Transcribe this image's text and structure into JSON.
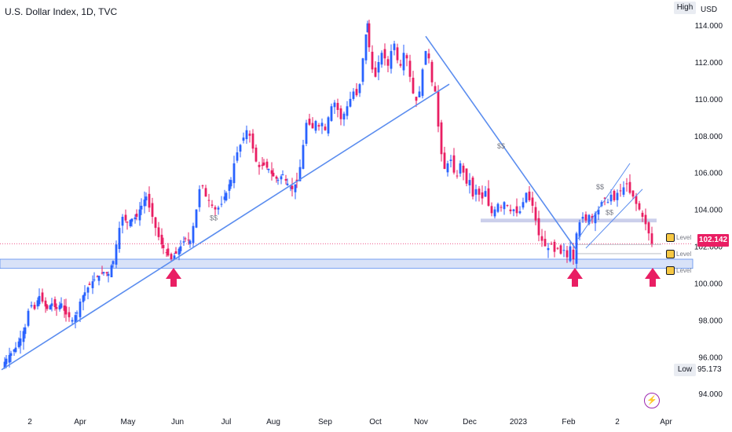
{
  "header": {
    "title": "U.S. Dollar Index, 1D, TVC",
    "high_label": "High",
    "currency": "USD",
    "low_label": "Low",
    "low_value": "95.173",
    "last_price": "102.142",
    "level_labels": [
      "Level",
      "Level",
      "Level"
    ],
    "bolt_icon": "lightning-icon"
  },
  "colors": {
    "up": "#2962ff",
    "down": "#e91e63",
    "trendline": "#5b8def",
    "support_zone": "#c8d6f5",
    "resistance_zone": "#c5cae9",
    "last_price_line": "#e91e63",
    "arrow": "#e91e63"
  },
  "chart_data": {
    "type": "candlestick",
    "title": "U.S. Dollar Index, 1D, TVC",
    "ylim": [
      93.2,
      114.6
    ],
    "y_ticks": [
      94.0,
      96.0,
      98.0,
      100.0,
      102.0,
      104.0,
      106.0,
      108.0,
      110.0,
      112.0,
      114.0
    ],
    "x_tick_labels": [
      "2",
      "Apr",
      "May",
      "Jun",
      "Jul",
      "Aug",
      "Sep",
      "Oct",
      "Nov",
      "Dec",
      "2023",
      "Feb",
      "2",
      "Apr"
    ],
    "high": 114.78,
    "low": 95.173,
    "last": 102.142,
    "close_path": [
      [
        0,
        95.4
      ],
      [
        6,
        95.9
      ],
      [
        12,
        96.2
      ],
      [
        18,
        96.5
      ],
      [
        24,
        97.0
      ],
      [
        30,
        97.6
      ],
      [
        34,
        98.5
      ],
      [
        38,
        98.8
      ],
      [
        42,
        98.6
      ],
      [
        48,
        99.3
      ],
      [
        52,
        99.0
      ],
      [
        58,
        98.6
      ],
      [
        64,
        98.9
      ],
      [
        70,
        98.6
      ],
      [
        76,
        98.9
      ],
      [
        82,
        98.3
      ],
      [
        90,
        98.0
      ],
      [
        96,
        98.4
      ],
      [
        100,
        99.0
      ],
      [
        106,
        99.5
      ],
      [
        112,
        99.9
      ],
      [
        118,
        100.2
      ],
      [
        124,
        100.4
      ],
      [
        130,
        100.6
      ],
      [
        136,
        100.5
      ],
      [
        142,
        101.2
      ],
      [
        146,
        102.1
      ],
      [
        150,
        103.0
      ],
      [
        154,
        103.6
      ],
      [
        160,
        103.3
      ],
      [
        166,
        103.5
      ],
      [
        172,
        103.6
      ],
      [
        178,
        104.2
      ],
      [
        184,
        104.7
      ],
      [
        188,
        104.1
      ],
      [
        192,
        103.6
      ],
      [
        196,
        103.0
      ],
      [
        200,
        102.5
      ],
      [
        206,
        101.9
      ],
      [
        212,
        101.5
      ],
      [
        216,
        101.3
      ],
      [
        222,
        101.6
      ],
      [
        228,
        102.0
      ],
      [
        234,
        102.4
      ],
      [
        240,
        102.3
      ],
      [
        244,
        103.1
      ],
      [
        248,
        104.0
      ],
      [
        252,
        105.1
      ],
      [
        256,
        105.3
      ],
      [
        260,
        104.7
      ],
      [
        264,
        104.5
      ],
      [
        268,
        104.2
      ],
      [
        272,
        104.0
      ],
      [
        276,
        104.1
      ],
      [
        280,
        104.3
      ],
      [
        286,
        104.9
      ],
      [
        292,
        105.6
      ],
      [
        296,
        106.5
      ],
      [
        300,
        107.1
      ],
      [
        304,
        107.5
      ],
      [
        308,
        107.9
      ],
      [
        312,
        108.3
      ],
      [
        316,
        108.0
      ],
      [
        320,
        107.3
      ],
      [
        324,
        106.6
      ],
      [
        328,
        106.3
      ],
      [
        334,
        106.4
      ],
      [
        340,
        106.2
      ],
      [
        346,
        105.8
      ],
      [
        352,
        105.6
      ],
      [
        358,
        105.9
      ],
      [
        364,
        105.4
      ],
      [
        370,
        105.1
      ],
      [
        376,
        105.5
      ],
      [
        380,
        106.3
      ],
      [
        384,
        107.5
      ],
      [
        388,
        108.7
      ],
      [
        392,
        108.6
      ],
      [
        396,
        108.4
      ],
      [
        400,
        108.8
      ],
      [
        404,
        108.5
      ],
      [
        408,
        108.7
      ],
      [
        412,
        108.3
      ],
      [
        416,
        109.0
      ],
      [
        420,
        109.6
      ],
      [
        424,
        109.8
      ],
      [
        428,
        109.4
      ],
      [
        432,
        108.9
      ],
      [
        436,
        109.2
      ],
      [
        440,
        109.6
      ],
      [
        444,
        110.0
      ],
      [
        448,
        110.4
      ],
      [
        452,
        110.2
      ],
      [
        456,
        110.8
      ],
      [
        460,
        112.2
      ],
      [
        464,
        113.5
      ],
      [
        466,
        114.1
      ],
      [
        468,
        112.8
      ],
      [
        472,
        111.6
      ],
      [
        476,
        111.2
      ],
      [
        480,
        112.0
      ],
      [
        484,
        112.5
      ],
      [
        488,
        112.2
      ],
      [
        492,
        111.8
      ],
      [
        496,
        112.6
      ],
      [
        500,
        113.0
      ],
      [
        504,
        112.1
      ],
      [
        508,
        111.8
      ],
      [
        512,
        112.5
      ],
      [
        516,
        112.2
      ],
      [
        520,
        111.2
      ],
      [
        524,
        110.3
      ],
      [
        528,
        109.9
      ],
      [
        532,
        110.4
      ],
      [
        536,
        111.6
      ],
      [
        540,
        112.6
      ],
      [
        544,
        112.2
      ],
      [
        548,
        110.9
      ],
      [
        552,
        110.4
      ],
      [
        556,
        108.5
      ],
      [
        560,
        107.0
      ],
      [
        564,
        106.2
      ],
      [
        568,
        106.5
      ],
      [
        572,
        106.7
      ],
      [
        576,
        106.0
      ],
      [
        580,
        105.8
      ],
      [
        584,
        106.5
      ],
      [
        588,
        106.0
      ],
      [
        592,
        105.4
      ],
      [
        596,
        105.6
      ],
      [
        600,
        104.7
      ],
      [
        604,
        105.1
      ],
      [
        608,
        104.8
      ],
      [
        612,
        104.6
      ],
      [
        616,
        105.0
      ],
      [
        620,
        104.2
      ],
      [
        624,
        103.8
      ],
      [
        628,
        104.0
      ],
      [
        632,
        104.3
      ],
      [
        636,
        104.1
      ],
      [
        640,
        104.4
      ],
      [
        644,
        104.2
      ],
      [
        648,
        103.9
      ],
      [
        652,
        104.0
      ],
      [
        656,
        103.8
      ],
      [
        660,
        103.9
      ],
      [
        664,
        104.4
      ],
      [
        668,
        104.9
      ],
      [
        672,
        104.5
      ],
      [
        676,
        104.2
      ],
      [
        680,
        103.4
      ],
      [
        684,
        102.6
      ],
      [
        688,
        102.3
      ],
      [
        692,
        102.0
      ],
      [
        696,
        101.9
      ],
      [
        700,
        102.1
      ],
      [
        704,
        101.7
      ],
      [
        708,
        101.9
      ],
      [
        712,
        101.6
      ],
      [
        716,
        101.8
      ],
      [
        720,
        101.4
      ],
      [
        724,
        102.0
      ],
      [
        728,
        101.3
      ],
      [
        732,
        102.7
      ],
      [
        736,
        103.3
      ],
      [
        740,
        103.6
      ],
      [
        744,
        103.4
      ],
      [
        748,
        103.7
      ],
      [
        752,
        103.5
      ],
      [
        756,
        103.8
      ],
      [
        760,
        104.0
      ],
      [
        764,
        104.4
      ],
      [
        768,
        104.6
      ],
      [
        772,
        104.4
      ],
      [
        776,
        104.8
      ],
      [
        780,
        104.5
      ],
      [
        784,
        104.9
      ],
      [
        788,
        105.0
      ],
      [
        792,
        105.2
      ],
      [
        796,
        105.4
      ],
      [
        800,
        104.9
      ],
      [
        804,
        104.7
      ],
      [
        808,
        104.3
      ],
      [
        812,
        104.0
      ],
      [
        816,
        103.6
      ],
      [
        820,
        103.2
      ],
      [
        824,
        102.7
      ],
      [
        828,
        102.142
      ]
    ],
    "trendlines": [
      {
        "from": [
          0,
          95.3
        ],
        "to": [
          570,
          110.8
        ]
      },
      {
        "from": [
          540,
          113.4
        ],
        "to": [
          732,
          101.8
        ]
      },
      {
        "from": [
          734,
          102.4
        ],
        "to": [
          800,
          106.5
        ]
      },
      {
        "from": [
          744,
          101.9
        ],
        "to": [
          816,
          105.1
        ]
      }
    ],
    "zones": [
      {
        "name": "support",
        "y": [
          100.8,
          101.3
        ]
      },
      {
        "name": "resistance",
        "y": [
          103.3,
          103.5
        ]
      }
    ],
    "arrows_at_x": [
      219,
      730,
      829
    ],
    "annotations": [
      "$$",
      "$$",
      "$$",
      "$$"
    ]
  }
}
